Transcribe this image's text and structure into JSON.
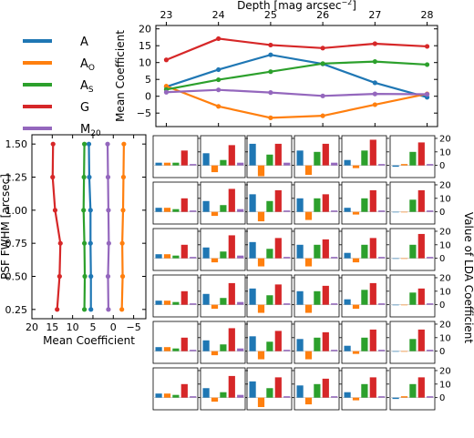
{
  "colors": {
    "A": "#1f77b4",
    "AO": "#ff7f0e",
    "AS": "#2ca02c",
    "G": "#d62728",
    "M20": "#9467bd"
  },
  "legend": [
    {
      "key": "A",
      "label": "A"
    },
    {
      "key": "AO",
      "label": "A",
      "sub": "O"
    },
    {
      "key": "AS",
      "label": "A",
      "sub": "S"
    },
    {
      "key": "G",
      "label": "G"
    },
    {
      "key": "M20",
      "label": "M",
      "sub": "20"
    }
  ],
  "chart_data": [
    {
      "id": "depth-panel",
      "type": "line",
      "xlabel_main": "Depth [mag arcsec",
      "xlabel_sup": "−2",
      "xlabel_end": "]",
      "ylabel": "Mean Coefficient",
      "x": [
        23,
        24,
        25,
        26,
        27,
        28
      ],
      "xlim": [
        22.8,
        28.2
      ],
      "ylim": [
        -9,
        21
      ],
      "xticks": [
        "23",
        "24",
        "25",
        "26",
        "27",
        "28"
      ],
      "yticks": [
        "−5",
        "0",
        "5",
        "10",
        "15",
        "20"
      ],
      "ytick_values": [
        -5,
        0,
        5,
        10,
        15,
        20
      ],
      "series": [
        {
          "key": "A",
          "values": [
            2.8,
            7.9,
            12.3,
            9.6,
            4.0,
            -0.3
          ]
        },
        {
          "key": "AO",
          "values": [
            3.0,
            -3.0,
            -6.4,
            -5.8,
            -2.5,
            0.7
          ]
        },
        {
          "key": "AS",
          "values": [
            2.0,
            4.9,
            7.3,
            9.7,
            10.3,
            9.4
          ]
        },
        {
          "key": "G",
          "values": [
            10.8,
            17.1,
            15.2,
            14.3,
            15.6,
            14.8
          ]
        },
        {
          "key": "M20",
          "values": [
            1.2,
            1.9,
            1.1,
            0.1,
            0.7,
            0.6
          ]
        }
      ]
    },
    {
      "id": "psf-panel",
      "type": "line",
      "ylabel": "PSF FWHM [arcsec]",
      "xlabel": "Mean Coefficient",
      "y": [
        0.25,
        0.5,
        0.75,
        1.0,
        1.25,
        1.5
      ],
      "ylim": [
        0.18,
        1.57
      ],
      "xlim": [
        20,
        -8
      ],
      "xticks": [
        "20",
        "15",
        "10",
        "5",
        "0",
        "−5"
      ],
      "xtick_values": [
        20,
        15,
        10,
        5,
        0,
        -5
      ],
      "yticks": [
        "0.25",
        "0.50",
        "0.75",
        "1.00",
        "1.25",
        "1.50"
      ],
      "series": [
        {
          "key": "A",
          "values": [
            5.5,
            5.5,
            5.6,
            5.6,
            5.9,
            6.0
          ]
        },
        {
          "key": "AO",
          "values": [
            -2.1,
            -2.3,
            -2.2,
            -2.4,
            -2.5,
            -2.6
          ]
        },
        {
          "key": "AS",
          "values": [
            7.1,
            7.0,
            7.1,
            7.3,
            7.2,
            7.1
          ]
        },
        {
          "key": "G",
          "values": [
            13.8,
            13.2,
            13.0,
            14.3,
            14.9,
            14.8
          ]
        },
        {
          "key": "M20",
          "values": [
            1.2,
            1.3,
            1.1,
            1.2,
            1.3,
            1.4
          ]
        }
      ]
    },
    {
      "id": "lda-grid",
      "type": "bar",
      "ylabel": "Value of LDA Coefficient",
      "rows_psf": [
        "1.50",
        "1.25",
        "1.00",
        "0.75",
        "0.50",
        "0.25"
      ],
      "cols_depth": [
        "23",
        "24",
        "25",
        "26",
        "27",
        "28"
      ],
      "bar_order": [
        "A",
        "AO",
        "AS",
        "G",
        "M20"
      ],
      "ylim": [
        -9,
        22
      ],
      "yticks": [
        "20",
        "10",
        "0"
      ],
      "ytick_values": [
        20,
        10,
        0
      ],
      "cells": [
        [
          [
            2,
            2,
            2,
            11,
            1
          ],
          [
            9,
            -5,
            4,
            15,
            2
          ],
          [
            16,
            -8,
            8,
            16,
            2
          ],
          [
            11,
            -7,
            10,
            16,
            2
          ],
          [
            4,
            -2,
            11,
            19,
            1
          ],
          [
            -1,
            1,
            10,
            17,
            1
          ]
        ],
        [
          [
            3,
            3,
            2,
            10,
            1
          ],
          [
            8,
            -3,
            5,
            17,
            2
          ],
          [
            13,
            -7,
            8,
            16,
            1
          ],
          [
            10,
            -6,
            10,
            13,
            1
          ],
          [
            3,
            -2,
            10,
            16,
            1
          ],
          [
            0,
            0,
            9,
            16,
            1
          ]
        ],
        [
          [
            3,
            3,
            2,
            10,
            1
          ],
          [
            8,
            -3,
            5,
            17,
            2
          ],
          [
            12,
            -6,
            7,
            15,
            1
          ],
          [
            10,
            -6,
            10,
            14,
            1
          ],
          [
            4,
            -3,
            10,
            15,
            1
          ],
          [
            0,
            0,
            10,
            18,
            1
          ]
        ],
        [
          [
            3,
            3,
            2,
            10,
            1
          ],
          [
            8,
            -3,
            5,
            16,
            2
          ],
          [
            12,
            -6,
            7,
            15,
            1
          ],
          [
            10,
            -6,
            10,
            14,
            1
          ],
          [
            4,
            -3,
            11,
            16,
            1
          ],
          [
            0,
            0,
            9,
            12,
            1
          ]
        ],
        [
          [
            3,
            3,
            2,
            10,
            1
          ],
          [
            8,
            -3,
            5,
            17,
            2
          ],
          [
            11,
            -6,
            7,
            15,
            1
          ],
          [
            9,
            -6,
            10,
            14,
            1
          ],
          [
            4,
            -2,
            10,
            16,
            1
          ],
          [
            0,
            0,
            9,
            16,
            1
          ]
        ],
        [
          [
            3,
            3,
            2,
            10,
            1
          ],
          [
            7,
            -3,
            4,
            16,
            2
          ],
          [
            12,
            -7,
            7,
            15,
            1
          ],
          [
            9,
            -5,
            10,
            14,
            1
          ],
          [
            4,
            -2,
            10,
            15,
            1
          ],
          [
            -1,
            1,
            10,
            15,
            1
          ]
        ]
      ]
    }
  ]
}
